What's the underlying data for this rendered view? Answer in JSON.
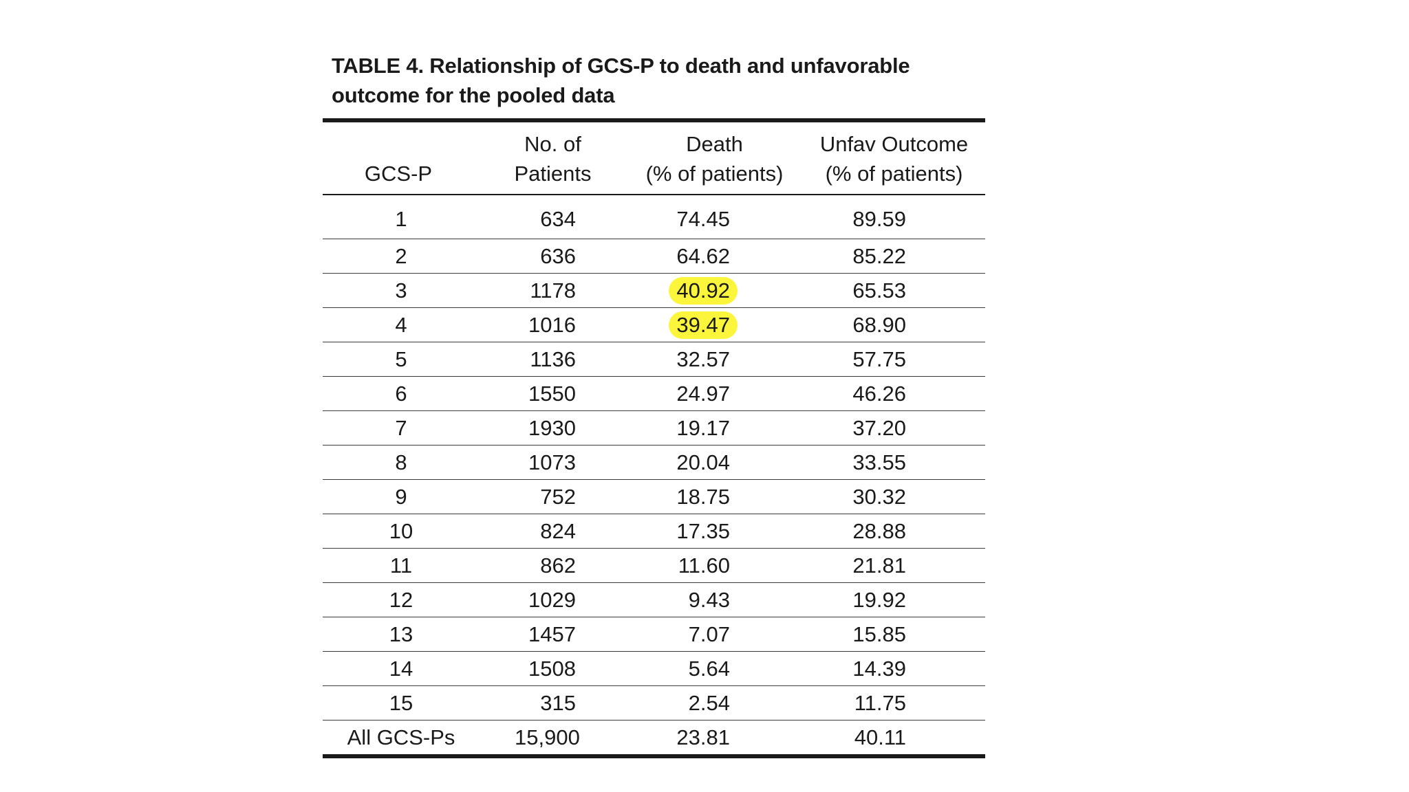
{
  "caption": {
    "line1": "TABLE 4. Relationship of GCS-P to death and unfavorable",
    "line2": "outcome for the pooled data"
  },
  "columns": [
    {
      "lines": [
        "",
        "GCS-P"
      ]
    },
    {
      "lines": [
        "No. of",
        "Patients"
      ]
    },
    {
      "lines": [
        "Death",
        "(% of patients)"
      ]
    },
    {
      "lines": [
        "Unfav Outcome",
        "(% of patients)"
      ]
    }
  ],
  "rows": [
    {
      "gcs_p": "1",
      "patients": "634",
      "death": "74.45",
      "unfav": "89.59"
    },
    {
      "gcs_p": "2",
      "patients": "636",
      "death": "64.62",
      "unfav": "85.22"
    },
    {
      "gcs_p": "3",
      "patients": "1178",
      "death": "40.92",
      "unfav": "65.53",
      "death_highlighted": true
    },
    {
      "gcs_p": "4",
      "patients": "1016",
      "death": "39.47",
      "unfav": "68.90",
      "death_highlighted": true
    },
    {
      "gcs_p": "5",
      "patients": "1136",
      "death": "32.57",
      "unfav": "57.75"
    },
    {
      "gcs_p": "6",
      "patients": "1550",
      "death": "24.97",
      "unfav": "46.26"
    },
    {
      "gcs_p": "7",
      "patients": "1930",
      "death": "19.17",
      "unfav": "37.20"
    },
    {
      "gcs_p": "8",
      "patients": "1073",
      "death": "20.04",
      "unfav": "33.55"
    },
    {
      "gcs_p": "9",
      "patients": "752",
      "death": "18.75",
      "unfav": "30.32"
    },
    {
      "gcs_p": "10",
      "patients": "824",
      "death": "17.35",
      "unfav": "28.88"
    },
    {
      "gcs_p": "11",
      "patients": "862",
      "death": "11.60",
      "unfav": "21.81"
    },
    {
      "gcs_p": "12",
      "patients": "1029",
      "death": "9.43",
      "unfav": "19.92"
    },
    {
      "gcs_p": "13",
      "patients": "1457",
      "death": "7.07",
      "unfav": "15.85"
    },
    {
      "gcs_p": "14",
      "patients": "1508",
      "death": "5.64",
      "unfav": "14.39"
    },
    {
      "gcs_p": "15",
      "patients": "315",
      "death": "2.54",
      "unfav": "11.75"
    },
    {
      "gcs_p": "All GCS-Ps",
      "patients": "15,900",
      "death": "23.81",
      "unfav": "40.11"
    }
  ],
  "colors": {
    "highlight": "#fbf53b",
    "text": "#1a1a1a",
    "background": "#ffffff"
  }
}
